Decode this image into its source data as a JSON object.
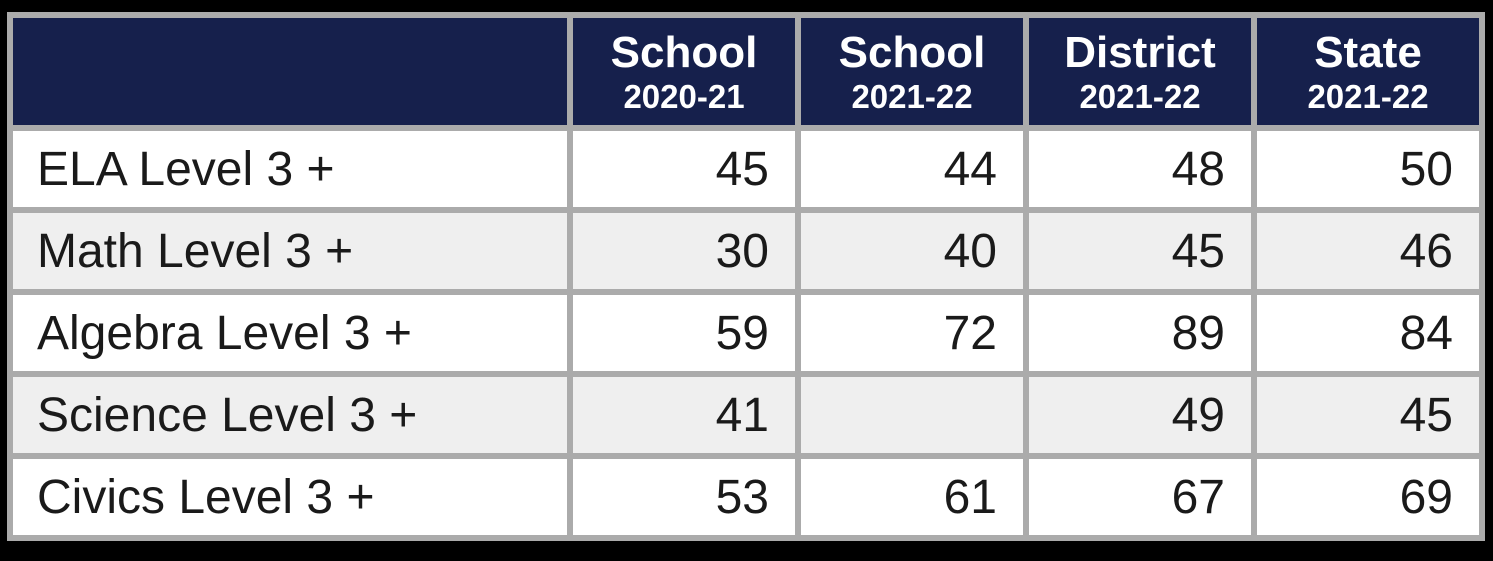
{
  "colors": {
    "header_bg": "#16204C",
    "header_text": "#FFFFFF",
    "grid_border": "#ABABAB",
    "row_bg": "#FFFFFF",
    "row_alt_bg": "#EFEFEF",
    "outer_frame": "#000000",
    "body_text": "#1A1A1A"
  },
  "chart_data": {
    "type": "table",
    "title": "",
    "row_header_column": "",
    "column_headers": [
      {
        "line1": "School",
        "line2": "2020-21"
      },
      {
        "line1": "School",
        "line2": "2021-22"
      },
      {
        "line1": "District",
        "line2": "2021-22"
      },
      {
        "line1": "State",
        "line2": "2021-22"
      }
    ],
    "rows": [
      {
        "label": "ELA Level 3 +",
        "values": [
          45,
          44,
          48,
          50
        ]
      },
      {
        "label": "Math Level 3 +",
        "values": [
          30,
          40,
          45,
          46
        ]
      },
      {
        "label": "Algebra Level 3 +",
        "values": [
          59,
          72,
          89,
          84
        ]
      },
      {
        "label": "Science Level 3 +",
        "values": [
          41,
          null,
          49,
          45
        ]
      },
      {
        "label": "Civics Level 3 +",
        "values": [
          53,
          61,
          67,
          69
        ]
      }
    ]
  }
}
